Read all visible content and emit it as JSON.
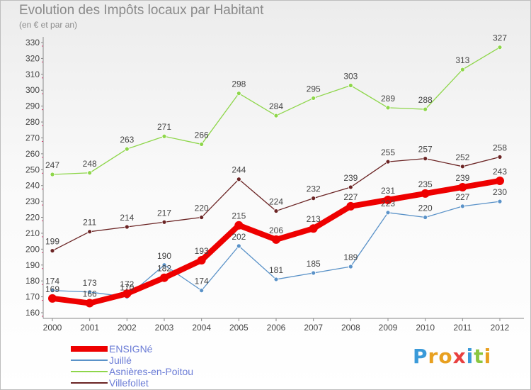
{
  "header": {
    "title": "Evolution des Impôts locaux par Habitant",
    "subtitle": "(en € et par an)"
  },
  "logo": {
    "letters": [
      "P",
      "r",
      "o",
      "x",
      "i",
      "t",
      "i"
    ],
    "colors": [
      "#3a9ad9",
      "#e8a020",
      "#e8a020",
      "#e84040",
      "#3a9ad9",
      "#8ac640",
      "#e8a020"
    ]
  },
  "chart_data": {
    "type": "line",
    "title": "Evolution des Impôts locaux par Habitant",
    "subtitle": "(en € et par an)",
    "xlabel": "",
    "ylabel": "",
    "x": [
      "2000",
      "2001",
      "2002",
      "2003",
      "2004",
      "2005",
      "2006",
      "2007",
      "2008",
      "2009",
      "2010",
      "2011",
      "2012"
    ],
    "ylim": [
      160,
      330
    ],
    "yticks": [
      160,
      170,
      180,
      190,
      200,
      210,
      220,
      230,
      240,
      250,
      260,
      270,
      280,
      290,
      300,
      310,
      320,
      330
    ],
    "grid": false,
    "legend_position": "bottom-left",
    "series": [
      {
        "name": "ENSIGNé",
        "color": "#ee0000",
        "values": [
          169,
          166,
          172,
          182,
          193,
          215,
          206,
          213,
          227,
          231,
          235,
          239,
          243
        ]
      },
      {
        "name": "Juillé",
        "color": "#5a92c8",
        "values": [
          174,
          173,
          170,
          190,
          174,
          202,
          181,
          185,
          189,
          223,
          220,
          227,
          230
        ]
      },
      {
        "name": "Asnières-en-Poitou",
        "color": "#8ed64a",
        "values": [
          247,
          248,
          263,
          271,
          266,
          298,
          284,
          295,
          303,
          289,
          288,
          313,
          327
        ]
      },
      {
        "name": "Villefollet",
        "color": "#6b2424",
        "values": [
          199,
          211,
          214,
          217,
          220,
          244,
          224,
          232,
          239,
          255,
          257,
          252,
          258
        ]
      }
    ]
  }
}
